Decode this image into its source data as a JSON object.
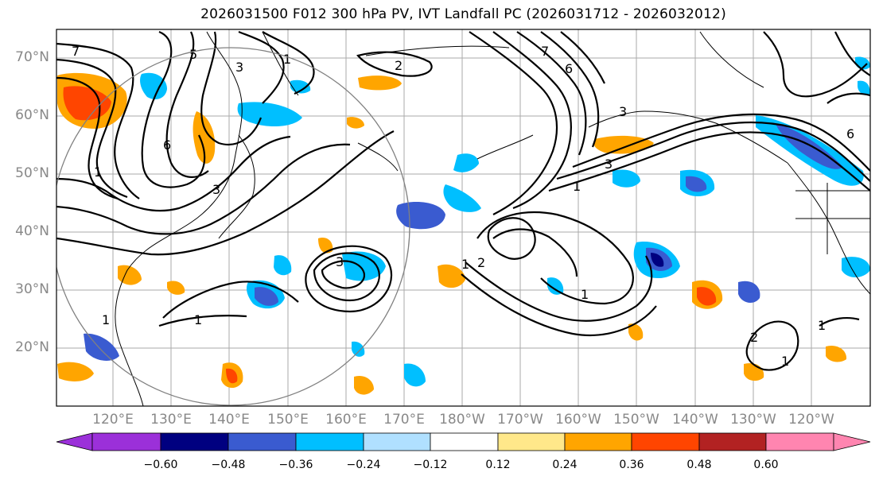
{
  "map": {
    "title": "2026031500 F012 300 hPa PV, IVT Landfall PC (2026031712 - 2026032012)",
    "lat_labels": [
      "70°N",
      "60°N",
      "50°N",
      "40°N",
      "30°N",
      "20°N"
    ],
    "lon_labels": [
      "120°E",
      "130°E",
      "140°E",
      "150°E",
      "160°E",
      "170°E",
      "180°W",
      "170°W",
      "160°W",
      "150°W",
      "140°W",
      "130°W",
      "120°W"
    ],
    "pv_contour_labels": [
      "7",
      "6",
      "5",
      "3",
      "2",
      "1",
      "3",
      "1",
      "7",
      "6",
      "6",
      "3",
      "1",
      "1",
      "2",
      "3",
      "1",
      "1",
      "1",
      "1",
      "2",
      "1",
      "3"
    ],
    "colorbar": {
      "tick_labels": [
        "−0.60",
        "−0.48",
        "−0.36",
        "−0.24",
        "−0.12",
        "0.12",
        "0.24",
        "0.36",
        "0.48",
        "0.60"
      ],
      "colors": [
        "#9b30d9",
        "#000080",
        "#3a5bd0",
        "#00bfff",
        "#b0e0ff",
        "#ffffff",
        "#ffe88a",
        "#ffa500",
        "#ff4500",
        "#b22222",
        "#ff85b0"
      ]
    },
    "colors": {
      "frame": "#000000",
      "grid": "#999999",
      "axis_label": "#888888",
      "range_circle": "#808080"
    }
  }
}
